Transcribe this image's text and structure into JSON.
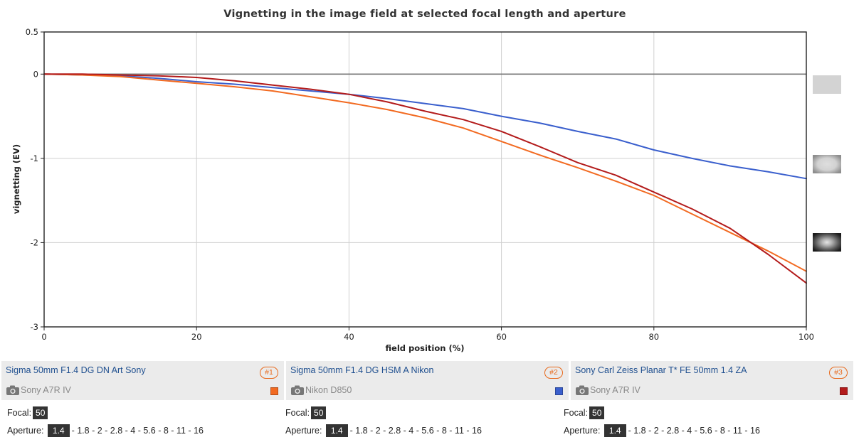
{
  "chart_data": {
    "type": "line",
    "title": "Vignetting in the image field at selected focal length and aperture",
    "xlabel": "field position (%)",
    "ylabel": "vignetting (EV)",
    "xlim": [
      0,
      100
    ],
    "ylim": [
      -3,
      0.5
    ],
    "x_ticks": [
      0,
      20,
      40,
      60,
      80,
      100
    ],
    "y_ticks": [
      0.5,
      0,
      -1,
      -2,
      -3
    ],
    "grid": true,
    "legend": "none",
    "reference_line": 0,
    "series": [
      {
        "color": "#f26a21",
        "x": [
          0,
          5,
          10,
          15,
          20,
          25,
          30,
          35,
          40,
          45,
          50,
          55,
          60,
          65,
          70,
          75,
          80,
          85,
          90,
          95,
          100
        ],
        "y": [
          0,
          -0.01,
          -0.03,
          -0.07,
          -0.11,
          -0.15,
          -0.2,
          -0.27,
          -0.34,
          -0.42,
          -0.52,
          -0.64,
          -0.8,
          -0.96,
          -1.11,
          -1.27,
          -1.44,
          -1.66,
          -1.88,
          -2.1,
          -2.34
        ]
      },
      {
        "color": "#3a5fcd",
        "x": [
          0,
          5,
          10,
          15,
          20,
          25,
          30,
          35,
          40,
          45,
          50,
          55,
          60,
          65,
          70,
          75,
          80,
          85,
          90,
          95,
          100
        ],
        "y": [
          0,
          -0.01,
          -0.02,
          -0.05,
          -0.09,
          -0.12,
          -0.16,
          -0.2,
          -0.24,
          -0.29,
          -0.35,
          -0.41,
          -0.5,
          -0.58,
          -0.68,
          -0.77,
          -0.9,
          -1.0,
          -1.09,
          -1.16,
          -1.24
        ]
      },
      {
        "color": "#b31b1b",
        "x": [
          0,
          5,
          10,
          15,
          20,
          25,
          30,
          35,
          40,
          45,
          50,
          55,
          60,
          65,
          70,
          75,
          80,
          85,
          90,
          95,
          100
        ],
        "y": [
          0,
          0,
          -0.01,
          -0.02,
          -0.04,
          -0.08,
          -0.13,
          -0.18,
          -0.24,
          -0.33,
          -0.44,
          -0.54,
          -0.68,
          -0.86,
          -1.05,
          -1.2,
          -1.4,
          -1.6,
          -1.83,
          -2.14,
          -2.48
        ]
      }
    ]
  },
  "lenses": [
    {
      "name": "Sigma 50mm F1.4 DG DN Art Sony",
      "badge": "#1",
      "camera": "Sony A7R IV",
      "color": "#f26a21",
      "camera_icon": "camera-icon"
    },
    {
      "name": "Sigma 50mm F1.4 DG HSM A Nikon",
      "badge": "#2",
      "camera": "Nikon D850",
      "color": "#3a5fcd",
      "camera_icon": "camera-icon"
    },
    {
      "name": "Sony Carl Zeiss Planar T* FE 50mm 1.4 ZA",
      "badge": "#3",
      "camera": "Sony A7R IV",
      "color": "#b31b1b",
      "camera_icon": "camera-icon"
    }
  ],
  "settings": {
    "focal_label": "Focal:",
    "focal_value": "50",
    "aperture_label": "Aperture:",
    "aperture_selected": "1.4",
    "aperture_others": [
      "1.8",
      "2",
      "2.8",
      "4",
      "5.6",
      "8",
      "11",
      "16"
    ]
  },
  "preview_thumbnails": [
    "vignetting-preview-none",
    "vignetting-preview-medium",
    "vignetting-preview-strong"
  ]
}
